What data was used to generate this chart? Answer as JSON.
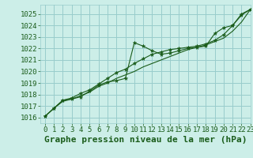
{
  "title": "Graphe pression niveau de la mer (hPa)",
  "bg_color": "#cceee8",
  "grid_color": "#99cccc",
  "line_color": "#1a5c1a",
  "marker_color": "#1a5c1a",
  "text_color": "#1a5c1a",
  "xlim": [
    -0.5,
    23
  ],
  "ylim": [
    1015.5,
    1025.8
  ],
  "xticks": [
    0,
    1,
    2,
    3,
    4,
    5,
    6,
    7,
    8,
    9,
    10,
    11,
    12,
    13,
    14,
    15,
    16,
    17,
    18,
    19,
    20,
    21,
    22,
    23
  ],
  "yticks": [
    1016,
    1017,
    1018,
    1019,
    1020,
    1021,
    1022,
    1023,
    1024,
    1025
  ],
  "series": [
    [
      1016.1,
      1016.8,
      1017.5,
      1017.6,
      1017.8,
      1018.3,
      1018.8,
      1019.1,
      1019.2,
      1019.4,
      1022.5,
      1022.2,
      1021.8,
      1021.5,
      1021.6,
      1021.8,
      1022.0,
      1022.1,
      1022.2,
      1023.3,
      1023.8,
      1024.0,
      1025.0,
      1025.4
    ],
    [
      1016.1,
      1016.8,
      1017.4,
      1017.6,
      1017.9,
      1018.2,
      1018.7,
      1019.0,
      1019.4,
      1019.7,
      1020.0,
      1020.4,
      1020.7,
      1021.0,
      1021.3,
      1021.6,
      1021.9,
      1022.1,
      1022.3,
      1022.6,
      1022.9,
      1023.5,
      1024.3,
      1025.4
    ],
    [
      1016.1,
      1016.8,
      1017.5,
      1017.7,
      1018.1,
      1018.4,
      1018.9,
      1019.4,
      1019.9,
      1020.2,
      1020.7,
      1021.1,
      1021.5,
      1021.7,
      1021.9,
      1022.0,
      1022.1,
      1022.2,
      1022.4,
      1022.7,
      1023.2,
      1024.0,
      1024.9,
      1025.4
    ]
  ],
  "markers": [
    true,
    false,
    true
  ],
  "title_fontsize": 8,
  "tick_fontsize": 6.5,
  "font_family": "monospace"
}
